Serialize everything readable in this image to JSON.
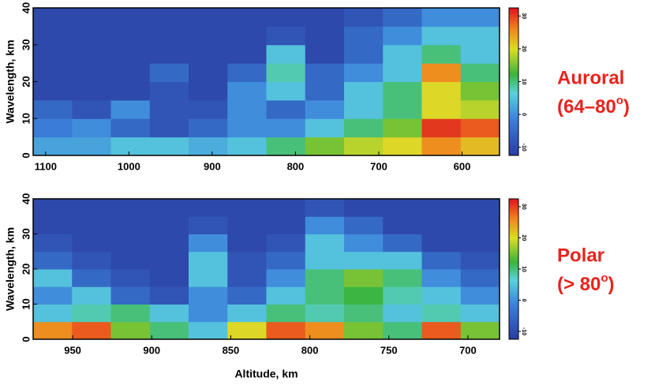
{
  "chart_data": [
    {
      "type": "heatmap",
      "y_label": "Wavelength, km",
      "annotation": [
        "Auroral",
        "(64–80",
        "o",
        ")"
      ],
      "xlim": [
        1115,
        555
      ],
      "xticks": [
        1100,
        1000,
        900,
        800,
        700,
        600
      ],
      "ylim": [
        0,
        40
      ],
      "yticks": [
        0,
        10,
        20,
        30,
        40
      ],
      "clim": [
        -12,
        32
      ],
      "cticks": [
        -10,
        0,
        10,
        20,
        30
      ],
      "z": [
        [
          2,
          2,
          5,
          5,
          3,
          5,
          10,
          15,
          18,
          20,
          25,
          22
        ],
        [
          -2,
          0,
          -5,
          -8,
          -5,
          0,
          0,
          5,
          10,
          15,
          30,
          28
        ],
        [
          -5,
          -8,
          0,
          -8,
          -8,
          0,
          -5,
          0,
          5,
          10,
          20,
          18
        ],
        [
          -10,
          -10,
          -10,
          -8,
          -10,
          0,
          5,
          -5,
          5,
          10,
          20,
          15
        ],
        [
          -10,
          -10,
          -10,
          -5,
          -10,
          -5,
          8,
          -5,
          0,
          5,
          25,
          10
        ],
        [
          -10,
          -10,
          -10,
          -10,
          -10,
          -10,
          5,
          -10,
          -5,
          5,
          10,
          5
        ],
        [
          -10,
          -10,
          -10,
          -10,
          -10,
          -10,
          -8,
          -10,
          -5,
          0,
          5,
          5
        ],
        [
          -10,
          -10,
          -10,
          -10,
          -10,
          -10,
          -10,
          -10,
          -8,
          -5,
          0,
          0
        ]
      ]
    },
    {
      "type": "heatmap",
      "y_label": "Wavelength, km",
      "x_label": "Altitude, km",
      "annotation": [
        "Polar",
        "(> 80",
        "o",
        ")"
      ],
      "xlim": [
        975,
        680
      ],
      "xticks": [
        950,
        900,
        850,
        800,
        750,
        700
      ],
      "ylim": [
        0,
        40
      ],
      "yticks": [
        0,
        10,
        20,
        30,
        40
      ],
      "clim": [
        -12,
        32
      ],
      "cticks": [
        -10,
        0,
        10,
        20,
        30
      ],
      "z": [
        [
          25,
          28,
          15,
          10,
          5,
          20,
          28,
          25,
          15,
          10,
          28,
          15
        ],
        [
          5,
          8,
          10,
          5,
          0,
          5,
          10,
          8,
          10,
          5,
          8,
          5
        ],
        [
          0,
          5,
          -5,
          -8,
          0,
          -5,
          5,
          10,
          12,
          8,
          5,
          0
        ],
        [
          5,
          -5,
          -8,
          -10,
          5,
          -8,
          0,
          10,
          15,
          10,
          0,
          -5
        ],
        [
          -5,
          -8,
          -10,
          -10,
          5,
          -8,
          -5,
          5,
          5,
          5,
          -5,
          -8
        ],
        [
          -8,
          -10,
          -10,
          -10,
          0,
          -10,
          -8,
          5,
          0,
          -5,
          -10,
          -10
        ],
        [
          -10,
          -10,
          -10,
          -10,
          -8,
          -10,
          -10,
          0,
          -5,
          -10,
          -10,
          -10
        ],
        [
          -10,
          -10,
          -10,
          -10,
          -10,
          -10,
          -10,
          -8,
          -10,
          -10,
          -10,
          -10
        ]
      ]
    }
  ]
}
